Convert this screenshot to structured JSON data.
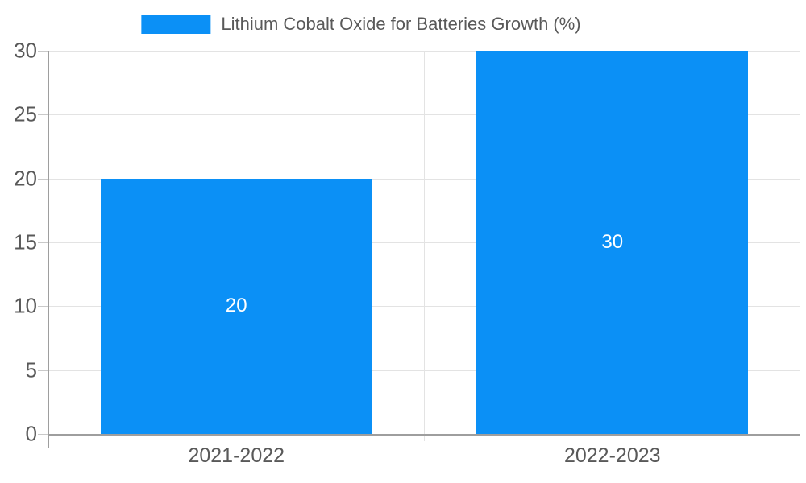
{
  "chart_data": {
    "type": "bar",
    "legend": "Lithium Cobalt Oxide for Batteries Growth (%)",
    "categories": [
      "2021-2022",
      "2022-2023"
    ],
    "series": [
      {
        "name": "Lithium Cobalt Oxide for Batteries Growth (%)",
        "values": [
          20,
          30
        ]
      }
    ],
    "bar_value_labels": [
      "20",
      "30"
    ],
    "ylim": [
      0,
      30
    ],
    "yticks": [
      0,
      5,
      10,
      15,
      20,
      25,
      30
    ],
    "grid": true,
    "legend_position": "top-center",
    "colors": {
      "bar": "#0b90f6",
      "bar_label": "#ffffff",
      "tick_label": "#595959",
      "legend_label": "#595959",
      "gridline": "#e3e3e3",
      "tick": "#c9c9c9",
      "axis": "#9e9e9e",
      "background": "#ffffff"
    }
  }
}
